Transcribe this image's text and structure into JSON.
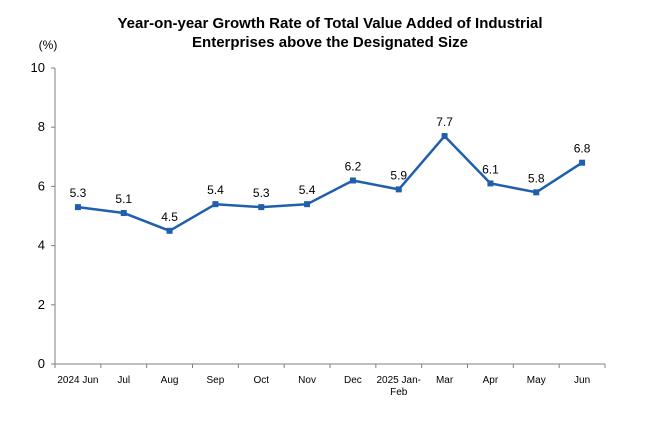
{
  "chart_data": {
    "type": "line",
    "title_lines": [
      "Year-on-year Growth Rate of Total Value Added of Industrial",
      "Enterprises above the Designated Size"
    ],
    "unit_label": "(%)",
    "xlabel": "",
    "ylabel": "",
    "ylim": [
      0,
      10
    ],
    "yticks": [
      0,
      2,
      4,
      6,
      8,
      10
    ],
    "grid": false,
    "legend": "none",
    "categories": [
      [
        "2024 Jun"
      ],
      [
        "Jul"
      ],
      [
        "Aug"
      ],
      [
        "Sep"
      ],
      [
        "Oct"
      ],
      [
        "Nov"
      ],
      [
        "Dec"
      ],
      [
        "2025 Jan-",
        "Feb"
      ],
      [
        "Mar"
      ],
      [
        "Apr"
      ],
      [
        "May"
      ],
      [
        "Jun"
      ]
    ],
    "series": [
      {
        "values": [
          5.3,
          5.1,
          4.5,
          5.4,
          5.3,
          5.4,
          6.2,
          5.9,
          7.7,
          6.1,
          5.8,
          6.8
        ],
        "color": "#1F5FAD"
      }
    ],
    "axis_color": "#7F7F7F"
  }
}
